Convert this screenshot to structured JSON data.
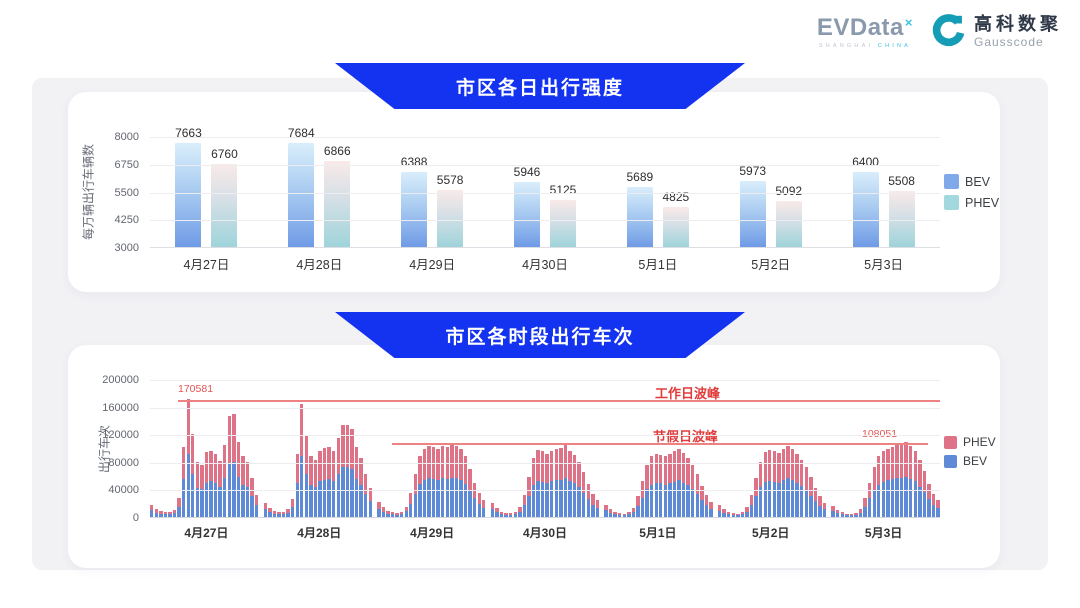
{
  "header": {
    "evdata": {
      "wordmark": "EVData",
      "sup": "×",
      "sub_left": "SHANGHAI",
      "sub_right": "CHINA"
    },
    "gausscode": {
      "cn": "高科数聚",
      "en": "Gausscode"
    }
  },
  "colors": {
    "banner_blue": "#1433F0",
    "bev_blue": "#5E8AD6",
    "phev_pink": "#DE7388",
    "legend1_bev": "#7FA9E8",
    "legend1_phev": "#A3D8DE",
    "annotation_red": "#E13B3B",
    "logo_teal": "#149DB4",
    "logo_cyan": "#3BC3E8"
  },
  "chart_data": [
    {
      "type": "bar",
      "title": "市区各日出行强度",
      "ylabel": "每万辆出行车辆数",
      "ylim": [
        3000,
        8000
      ],
      "yticks": [
        8000,
        6750,
        5500,
        4250,
        3000
      ],
      "grid": true,
      "legend_position": "right",
      "categories": [
        "4月27日",
        "4月28日",
        "4月29日",
        "4月30日",
        "5月1日",
        "5月2日",
        "5月3日"
      ],
      "series": [
        {
          "name": "BEV",
          "values": [
            7663,
            7684,
            6388,
            5946,
            5689,
            5973,
            6400
          ]
        },
        {
          "name": "PHEV",
          "values": [
            6760,
            6866,
            5578,
            5125,
            4825,
            5092,
            5508
          ]
        }
      ]
    },
    {
      "type": "bar",
      "stacked": true,
      "title": "市区各时段出行车次",
      "ylabel": "出行车次",
      "ylim": [
        0,
        200000
      ],
      "yticks": [
        200000,
        160000,
        120000,
        80000,
        40000,
        0
      ],
      "grid": true,
      "legend_position": "right",
      "categories": [
        "4月27日",
        "4月28日",
        "4月29日",
        "4月30日",
        "5月1日",
        "5月2日",
        "5月3日"
      ],
      "hours_per_day": 24,
      "series": [
        {
          "name": "BEV",
          "color": "#5E8AD6",
          "days": [
            [
              10000,
              6500,
              5000,
              4500,
              4000,
              5500,
              15000,
              55000,
              91000,
              62000,
              42000,
              40000,
              50000,
              52000,
              50000,
              44000,
              56000,
              78000,
              80000,
              58000,
              47000,
              43000,
              30000,
              17000
            ],
            [
              11000,
              7000,
              5000,
              4500,
              4000,
              6000,
              14000,
              50000,
              88000,
              63000,
              47000,
              44000,
              52000,
              54000,
              55000,
              52000,
              62000,
              72000,
              72000,
              69000,
              55000,
              46000,
              34000,
              23000
            ],
            [
              12000,
              7500,
              5000,
              4000,
              3500,
              4500,
              8000,
              19000,
              34000,
              48000,
              53000,
              56000,
              55000,
              53000,
              56000,
              55000,
              57000,
              56000,
              53000,
              48000,
              38000,
              27000,
              19000,
              13500
            ],
            [
              11000,
              7000,
              4500,
              3300,
              3300,
              3800,
              7500,
              17000,
              31000,
              46000,
              52000,
              51000,
              50000,
              52000,
              53000,
              54000,
              56000,
              52000,
              49000,
              43000,
              35000,
              26000,
              18000,
              13000
            ],
            [
              10000,
              6500,
              4500,
              3300,
              2700,
              3800,
              7000,
              16000,
              28000,
              40000,
              47000,
              50000,
              49000,
              47000,
              50000,
              51000,
              53000,
              50000,
              46000,
              41000,
              33000,
              24000,
              17000,
              12000
            ],
            [
              9000,
              6000,
              4000,
              3300,
              2700,
              3800,
              7500,
              17000,
              30000,
              43000,
              51000,
              52000,
              51000,
              50000,
              53000,
              56000,
              53000,
              49000,
              45000,
              39000,
              31000,
              23000,
              16000,
              11000
            ],
            [
              9000,
              5500,
              4000,
              2700,
              2700,
              3300,
              6500,
              15000,
              27000,
              39000,
              47000,
              51000,
              53000,
              55000,
              56000,
              57000,
              58000,
              55000,
              52000,
              44000,
              36000,
              26000,
              18000,
              13000
            ]
          ]
        },
        {
          "name": "PHEV",
          "color": "#DE7388",
          "days": [
            [
              8000,
              5500,
              4000,
              3500,
              3000,
              4500,
              12000,
              46000,
              79581,
              58000,
              38000,
              36000,
              44000,
              44000,
              42000,
              37000,
              48000,
              68000,
              69000,
              50000,
              41000,
              37000,
              26000,
              15000
            ],
            [
              9000,
              6000,
              4000,
              3500,
              3000,
              5000,
              12000,
              42000,
              76000,
              54000,
              41000,
              38000,
              44000,
              46000,
              46000,
              44000,
              53000,
              62000,
              61000,
              59000,
              46000,
              39000,
              29000,
              19000
            ],
            [
              10000,
              6500,
              4000,
              3000,
              2500,
              3500,
              7000,
              16000,
              28000,
              40000,
              45000,
              47000,
              46000,
              45000,
              47000,
              47000,
              49000,
              47000,
              45000,
              40000,
              32000,
              23000,
              16000,
              11500
            ],
            [
              9000,
              6000,
              3500,
              2700,
              2700,
              3200,
              6500,
              15000,
              27000,
              39000,
              45000,
              44000,
              42000,
              44000,
              45000,
              46000,
              48000,
              44000,
              41000,
              37000,
              30000,
              22000,
              16000,
              11000
            ],
            [
              8000,
              5500,
              3500,
              2700,
              2300,
              3200,
              6000,
              14000,
              24000,
              35000,
              41000,
              42000,
              41000,
              41000,
              42000,
              44000,
              45000,
              43000,
              39000,
              35000,
              29000,
              21000,
              15000,
              10000
            ],
            [
              8000,
              5000,
              3000,
              2700,
              2300,
              3200,
              6500,
              15000,
              26000,
              37000,
              43000,
              45000,
              44000,
              43000,
              46000,
              47000,
              45000,
              42000,
              38000,
              33000,
              27000,
              19000,
              14000,
              9000
            ],
            [
              7000,
              4500,
              3000,
              2300,
              2300,
              2700,
              5500,
              13000,
              23000,
              33000,
              41000,
              44000,
              46000,
              47000,
              48000,
              49000,
              50051,
              48000,
              44000,
              38000,
              30000,
              22000,
              16000,
              11000
            ]
          ]
        }
      ],
      "annotations": {
        "workday_peak": {
          "label": "工作日波峰",
          "value": 170581,
          "value_label": "170581"
        },
        "holiday_peak": {
          "label": "节假日波峰",
          "value": 108051,
          "value_label": "108051"
        }
      }
    }
  ]
}
